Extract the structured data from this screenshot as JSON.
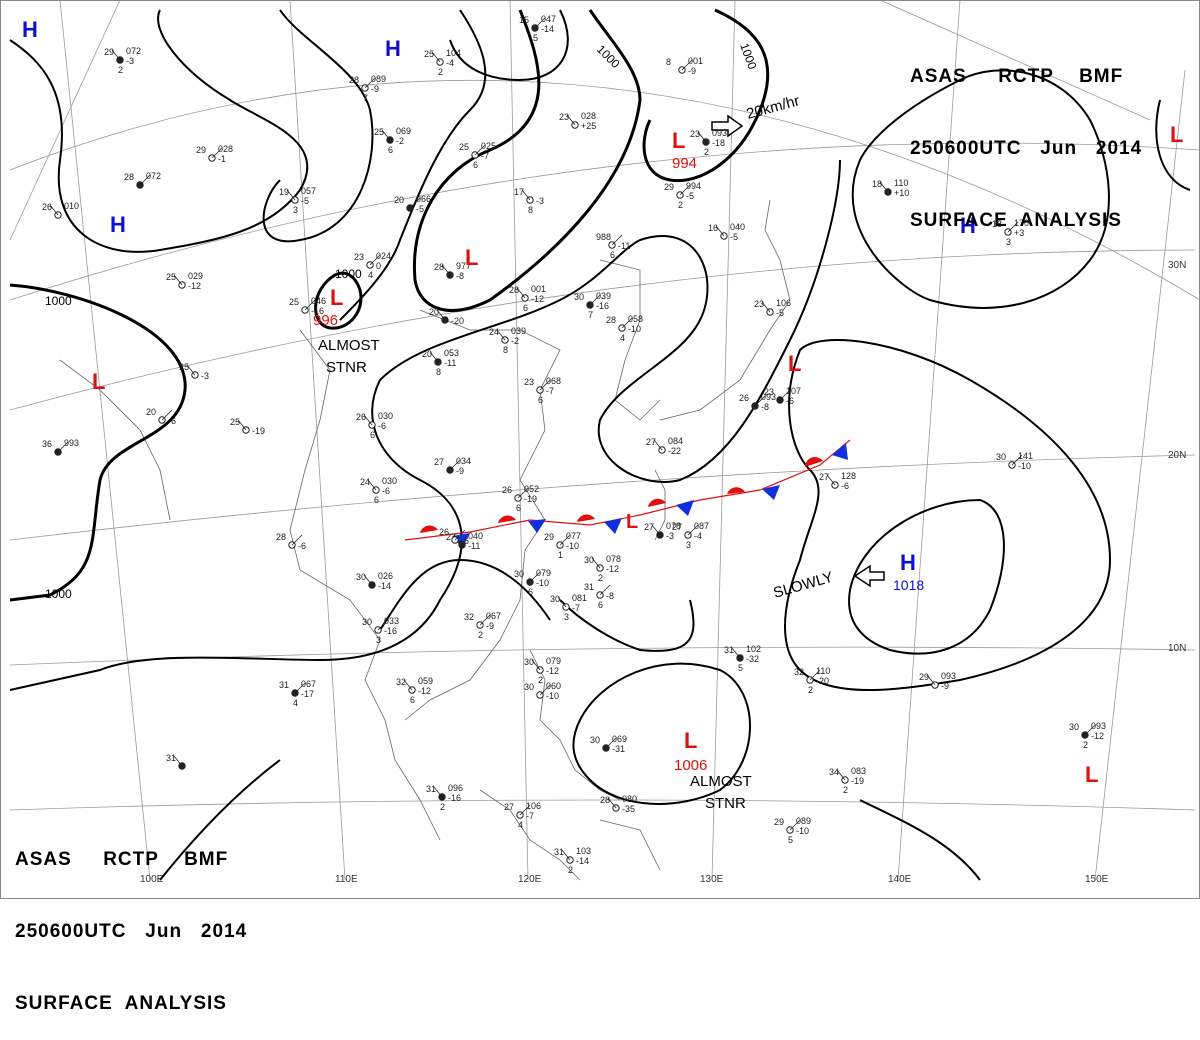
{
  "header": {
    "product": [
      "ASAS",
      "RCTP",
      "BMF"
    ],
    "valid_time": [
      "250600UTC",
      "Jun",
      "2014"
    ],
    "chart_type": "SURFACE  ANALYSIS"
  },
  "grid_labels": {
    "lat": [
      "30N",
      "20N",
      "10N"
    ],
    "lon": [
      "110E",
      "120E",
      "130E",
      "140E",
      "150E"
    ],
    "lon_partial": "100E"
  },
  "isobar_labels": [
    "1000",
    "1000",
    "1000",
    "1000",
    "1000"
  ],
  "systems": [
    {
      "type": "H",
      "color": "#1010d0"
    },
    {
      "type": "H",
      "color": "#1010d0"
    },
    {
      "type": "H",
      "color": "#1010d0"
    },
    {
      "type": "H",
      "color": "#1010d0"
    },
    {
      "type": "H",
      "color": "#1010d0",
      "pressure": "1018",
      "motion": "SLOWLY"
    },
    {
      "type": "L",
      "color": "#e01010"
    },
    {
      "type": "L",
      "color": "#e01010",
      "pressure": "996",
      "motion": "ALMOST STNR"
    },
    {
      "type": "L",
      "color": "#e01010"
    },
    {
      "type": "L",
      "color": "#e01010",
      "pressure": "994",
      "motion": "20km/hr"
    },
    {
      "type": "L",
      "color": "#e01010"
    },
    {
      "type": "L",
      "color": "#e01010"
    },
    {
      "type": "L",
      "color": "#e01010",
      "pressure": "1006",
      "motion": "ALMOST STNR"
    },
    {
      "type": "L",
      "color": "#e01010"
    },
    {
      "type": "L",
      "color": "#e01010"
    }
  ],
  "annotations": {
    "almost_stnr_1": [
      "ALMOST",
      "STNR"
    ],
    "almost_stnr_2": [
      "ALMOST",
      "STNR"
    ],
    "slowly": "SLOWLY",
    "speed": "20km/hr"
  },
  "front": {
    "type": "stationary",
    "warm_color": "#e01010",
    "cold_color": "#1030e0"
  },
  "stations": [
    {
      "t": "29",
      "p": "072",
      "d": "-3",
      "w": "2"
    },
    {
      "t": "28",
      "p": "089",
      "d": "-9",
      "w": "7"
    },
    {
      "t": "25",
      "p": "104",
      "d": "-4",
      "w": "2"
    },
    {
      "t": "15",
      "p": "047",
      "d": "-14",
      "w": "5"
    },
    {
      "t": "23",
      "p": "028",
      "d": "+25",
      "w": ""
    },
    {
      "t": "29",
      "p": "028",
      "d": "-1",
      "w": ""
    },
    {
      "t": "25",
      "p": "069",
      "d": "-2",
      "w": "6"
    },
    {
      "t": "25",
      "p": "025",
      "d": "-7",
      "w": "6"
    },
    {
      "t": "19",
      "p": "057",
      "d": "-5",
      "w": "3"
    },
    {
      "t": "20",
      "p": "066",
      "d": "-5",
      "w": ""
    },
    {
      "t": "17",
      "p": "",
      "d": "-3",
      "w": "8"
    },
    {
      "t": "23",
      "p": "024",
      "d": "0",
      "w": "4"
    },
    {
      "t": "28",
      "p": "977",
      "d": "-8",
      "w": ""
    },
    {
      "t": "988",
      "p": "",
      "d": "-11",
      "w": "6"
    },
    {
      "t": "28",
      "p": "001",
      "d": "-12",
      "w": "6"
    },
    {
      "t": "30",
      "p": "039",
      "d": "-16",
      "w": "7"
    },
    {
      "t": "24",
      "p": "039",
      "d": "-2",
      "w": "8"
    },
    {
      "t": "28",
      "p": "058",
      "d": "-10",
      "w": "4"
    },
    {
      "t": "20",
      "p": "053",
      "d": "-11",
      "w": "8"
    },
    {
      "t": "23",
      "p": "068",
      "d": "-7",
      "w": "6"
    },
    {
      "t": "26",
      "p": "030",
      "d": "-6",
      "w": "6"
    },
    {
      "t": "27",
      "p": "034",
      "d": "-9",
      "w": ""
    },
    {
      "t": "24",
      "p": "030",
      "d": "-6",
      "w": "6"
    },
    {
      "t": "26",
      "p": "052",
      "d": "-19",
      "w": "6"
    },
    {
      "t": "27",
      "p": "040",
      "d": "-11",
      "w": ""
    },
    {
      "t": "29",
      "p": "077",
      "d": "-10",
      "w": "1"
    },
    {
      "t": "30",
      "p": "078",
      "d": "-12",
      "w": "2"
    },
    {
      "t": "30",
      "p": "079",
      "d": "-10",
      "w": "6"
    },
    {
      "t": "30",
      "p": "081",
      "d": "-7",
      "w": "3"
    },
    {
      "t": "32",
      "p": "067",
      "d": "-9",
      "w": "2"
    },
    {
      "t": "30",
      "p": "026",
      "d": "-14",
      "w": ""
    },
    {
      "t": "30",
      "p": "033",
      "d": "-16",
      "w": "3"
    },
    {
      "t": "32",
      "p": "059",
      "d": "-12",
      "w": "6"
    },
    {
      "t": "31",
      "p": "067",
      "d": "-17",
      "w": "4"
    },
    {
      "t": "30",
      "p": "079",
      "d": "-12",
      "w": "2"
    },
    {
      "t": "30",
      "p": "060",
      "d": "-10",
      "w": ""
    },
    {
      "t": "31",
      "p": "102",
      "d": "-32",
      "w": "5"
    },
    {
      "t": "32",
      "p": "110",
      "d": "-20",
      "w": "2"
    },
    {
      "t": "29",
      "p": "093",
      "d": "-9",
      "w": ""
    },
    {
      "t": "30",
      "p": "093",
      "d": "-12",
      "w": "2"
    },
    {
      "t": "34",
      "p": "083",
      "d": "-19",
      "w": "2"
    },
    {
      "t": "29",
      "p": "089",
      "d": "-10",
      "w": "5"
    },
    {
      "t": "31",
      "p": "096",
      "d": "-16",
      "w": "2"
    },
    {
      "t": "27",
      "p": "106",
      "d": "-7",
      "w": "4"
    },
    {
      "t": "31",
      "p": "103",
      "d": "-14",
      "w": "2"
    },
    {
      "t": "30",
      "p": "069",
      "d": "-31",
      "w": ""
    },
    {
      "t": "28",
      "p": "080",
      "d": "-35",
      "w": ""
    },
    {
      "t": "31",
      "p": "",
      "d": "-8",
      "w": "6"
    },
    {
      "t": "18",
      "p": "110",
      "d": "+10",
      "w": ""
    },
    {
      "t": "18",
      "p": "170",
      "d": "+3",
      "w": "3"
    },
    {
      "t": "23",
      "p": "106",
      "d": "-5",
      "w": ""
    },
    {
      "t": "23",
      "p": "107",
      "d": "-6",
      "w": ""
    },
    {
      "t": "27",
      "p": "128",
      "d": "-6",
      "w": ""
    },
    {
      "t": "30",
      "p": "141",
      "d": "-10",
      "w": ""
    },
    {
      "t": "27",
      "p": "078",
      "d": "-3",
      "w": ""
    },
    {
      "t": "27",
      "p": "087",
      "d": "-4",
      "w": "3"
    },
    {
      "t": "27",
      "p": "084",
      "d": "-22",
      "w": ""
    },
    {
      "t": "26",
      "p": "093",
      "d": "-8",
      "w": ""
    },
    {
      "t": "16",
      "p": "040",
      "d": "-5",
      "w": ""
    },
    {
      "t": "29",
      "p": "994",
      "d": "-5",
      "w": "2"
    },
    {
      "t": "23",
      "p": "093",
      "d": "-18",
      "w": "2"
    },
    {
      "t": "8",
      "p": "001",
      "d": "-9",
      "w": ""
    },
    {
      "t": "25",
      "p": "029",
      "d": "-12",
      "w": ""
    },
    {
      "t": "36",
      "p": "993",
      "d": "",
      "w": ""
    },
    {
      "t": "25",
      "p": "",
      "d": "-19",
      "w": ""
    },
    {
      "t": "20",
      "p": "",
      "d": "-6",
      "w": ""
    },
    {
      "t": "31",
      "p": "",
      "d": "",
      "w": ""
    },
    {
      "t": "28",
      "p": "",
      "d": "-6",
      "w": ""
    },
    {
      "t": "26",
      "p": "010",
      "d": "",
      "w": ""
    },
    {
      "t": "28",
      "p": "072",
      "d": "",
      "w": ""
    },
    {
      "t": "25",
      "p": "",
      "d": "-3",
      "w": ""
    },
    {
      "t": "25",
      "p": "046",
      "d": "-16",
      "w": ""
    },
    {
      "t": "20",
      "p": "",
      "d": "-20",
      "w": ""
    },
    {
      "t": "26",
      "p": "",
      "d": "-6",
      "w": ""
    }
  ]
}
